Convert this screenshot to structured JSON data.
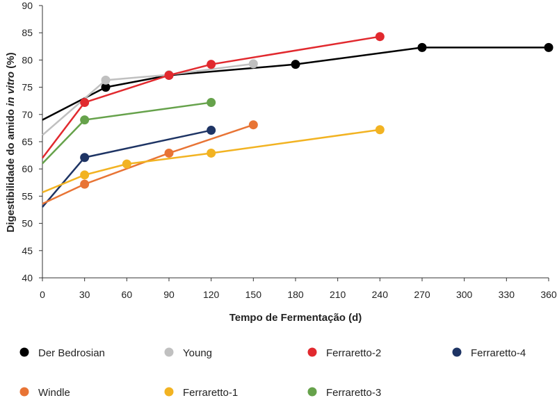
{
  "chart_data": {
    "type": "line",
    "xlabel": "Tempo de Fermentação (d)",
    "ylabel_parts": [
      "Digestibilidade do amido ",
      "in vitro",
      " (%)"
    ],
    "xlim": [
      0,
      360
    ],
    "ylim": [
      40,
      90
    ],
    "xticks": [
      0,
      30,
      60,
      90,
      120,
      150,
      180,
      210,
      240,
      270,
      300,
      330,
      360
    ],
    "yticks": [
      40,
      45,
      50,
      55,
      60,
      65,
      70,
      75,
      80,
      85,
      90
    ],
    "grid": false,
    "legend_position": "bottom",
    "series": [
      {
        "name": "Der Bedrosian",
        "color": "#000000",
        "x": [
          0,
          45,
          90,
          180,
          270,
          360
        ],
        "y": [
          69,
          75,
          77.2,
          79.2,
          82.3,
          82.3
        ],
        "markers": [
          false,
          true,
          true,
          true,
          true,
          true
        ]
      },
      {
        "name": "Young",
        "color": "#c0c0c0",
        "x": [
          0,
          45,
          90,
          150
        ],
        "y": [
          66.2,
          76.3,
          77.3,
          79.3
        ],
        "markers": [
          false,
          true,
          true,
          true
        ]
      },
      {
        "name": "Ferraretto-2",
        "color": "#e1292e",
        "x": [
          0,
          30,
          90,
          120,
          240
        ],
        "y": [
          62,
          72.2,
          77.2,
          79.2,
          84.3
        ],
        "markers": [
          false,
          true,
          true,
          true,
          true
        ]
      },
      {
        "name": "Ferraretto-4",
        "color": "#1e3464",
        "x": [
          0,
          30,
          120
        ],
        "y": [
          53,
          62.1,
          67.1
        ],
        "markers": [
          false,
          true,
          true
        ]
      },
      {
        "name": "Windle",
        "color": "#e87435",
        "x": [
          0,
          30,
          90,
          150
        ],
        "y": [
          53.6,
          57.2,
          62.9,
          68.1
        ],
        "markers": [
          false,
          true,
          true,
          true
        ]
      },
      {
        "name": "Ferraretto-1",
        "color": "#f2b322",
        "x": [
          0,
          30,
          60,
          120,
          240
        ],
        "y": [
          55.7,
          58.9,
          60.9,
          62.9,
          67.2
        ],
        "markers": [
          false,
          true,
          true,
          true,
          true
        ]
      },
      {
        "name": "Ferraretto-3",
        "color": "#66a24b",
        "x": [
          0,
          30,
          120
        ],
        "y": [
          61,
          69,
          72.2
        ],
        "markers": [
          false,
          true,
          true
        ]
      }
    ]
  }
}
